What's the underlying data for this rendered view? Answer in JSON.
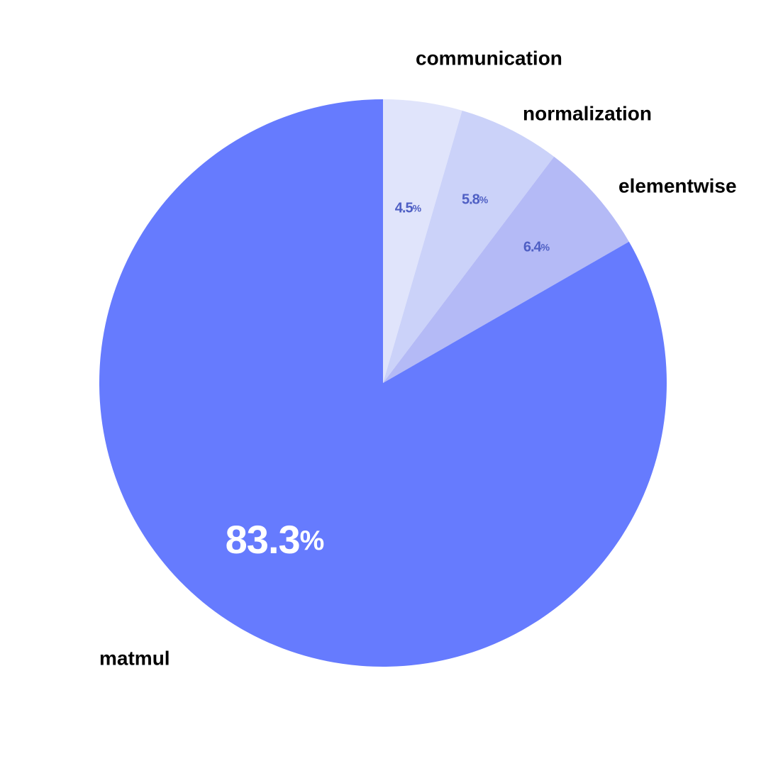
{
  "chart_data": {
    "type": "pie",
    "start": "top",
    "direction": "clockwise",
    "slices": [
      {
        "label": "communication",
        "value": 4.5,
        "value_text": "4.5",
        "unit": "%",
        "color": "#e0e4fb",
        "text_color": "#4f5fc4"
      },
      {
        "label": "normalization",
        "value": 5.8,
        "value_text": "5.8",
        "unit": "%",
        "color": "#cbd2f9",
        "text_color": "#4f5fc4"
      },
      {
        "label": "elementwise",
        "value": 6.4,
        "value_text": "6.4",
        "unit": "%",
        "color": "#b4baf6",
        "text_color": "#4f5fc4"
      },
      {
        "label": "matmul",
        "value": 83.3,
        "value_text": "83.3",
        "unit": "%",
        "color": "#667bfe",
        "text_color": "#ffffff"
      }
    ]
  }
}
